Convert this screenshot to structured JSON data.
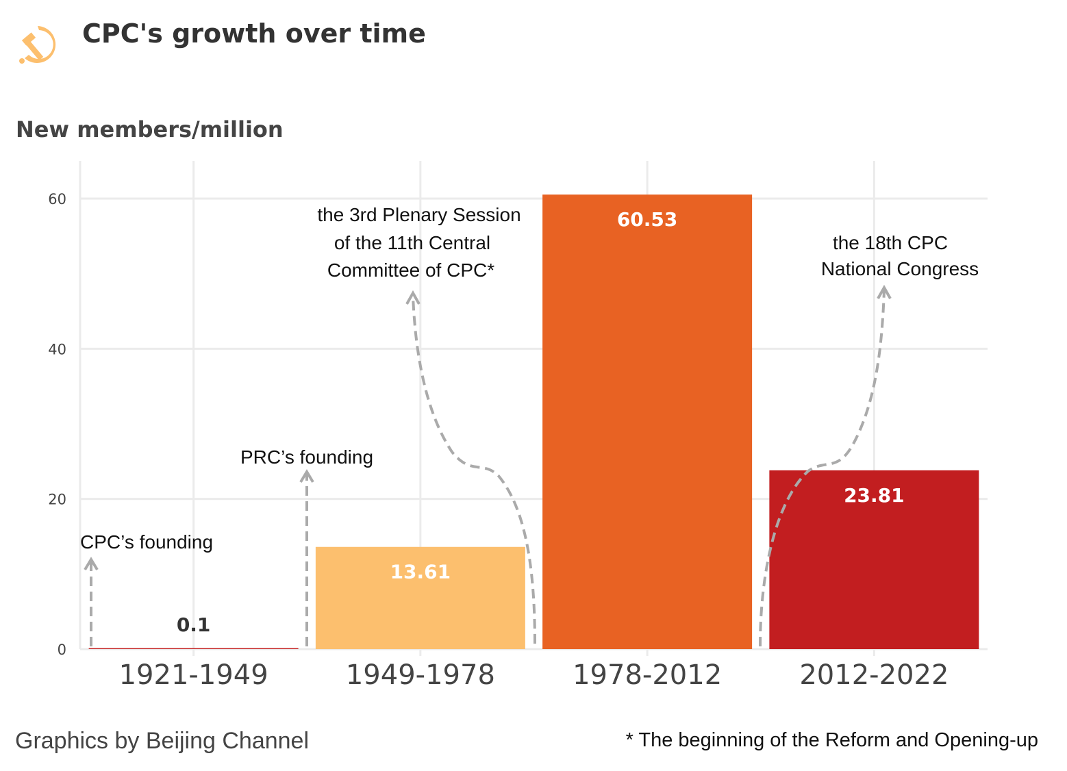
{
  "chart_data": {
    "type": "bar",
    "title": "CPC's growth over time",
    "ylabel": "New members/million",
    "xlabel": "",
    "categories": [
      "1921-1949",
      "1949-1978",
      "1978-2012",
      "2012-2022"
    ],
    "values": [
      0.1,
      13.61,
      60.53,
      23.81
    ],
    "value_labels": [
      "0.1",
      "13.61",
      "60.53",
      "23.81"
    ],
    "colors": [
      "#C62828",
      "#FCBF6E",
      "#E86223",
      "#C21E20"
    ],
    "ylim": [
      0,
      65
    ],
    "yticks": [
      0,
      20,
      40,
      60
    ],
    "ytick_labels": [
      "0",
      "20",
      "40",
      "60"
    ],
    "grid": true,
    "annotations": [
      {
        "lines": [
          "CPC’s founding"
        ]
      },
      {
        "lines": [
          "PRC’s founding"
        ]
      },
      {
        "lines": [
          "the 3rd Plenary Session",
          "of the 11th Central",
          "Committee of CPC*"
        ]
      },
      {
        "lines": [
          "the 18th CPC",
          "National Congress"
        ]
      }
    ]
  },
  "logo": {
    "icon": "hammer-and-sickle-icon",
    "color": "#FCBF6E"
  },
  "footer": {
    "credit": "Graphics by Beijing Channel",
    "note": "* The beginning of the Reform and Opening-up"
  }
}
